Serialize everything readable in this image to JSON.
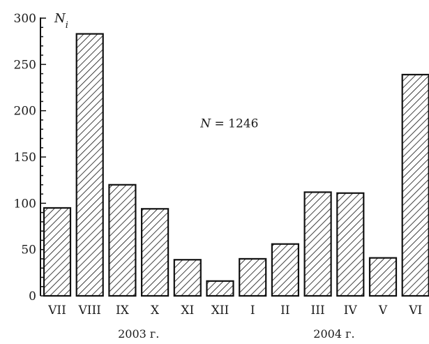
{
  "chart_data": {
    "type": "bar",
    "categories": [
      "VII",
      "VIII",
      "IX",
      "X",
      "XI",
      "XII",
      "I",
      "II",
      "III",
      "IV",
      "V",
      "VI"
    ],
    "values": [
      95,
      283,
      120,
      94,
      39,
      16,
      40,
      56,
      112,
      111,
      41,
      239
    ],
    "ylabel": "N",
    "ylabel_subscript": "i",
    "ylim": [
      0,
      300
    ],
    "yticks": [
      "0",
      "50",
      "100",
      "150",
      "200",
      "250",
      "300"
    ],
    "groups": [
      {
        "label": "2003 г.",
        "from": 0,
        "to": 5
      },
      {
        "label": "2004 г.",
        "from": 6,
        "to": 11
      }
    ],
    "annotation": {
      "var": "N",
      "text": " = 1246"
    },
    "grid": false,
    "legend": "none"
  },
  "colors": {
    "bar_stroke": "#111111",
    "hatch": "#111111",
    "background": "#ffffff"
  }
}
